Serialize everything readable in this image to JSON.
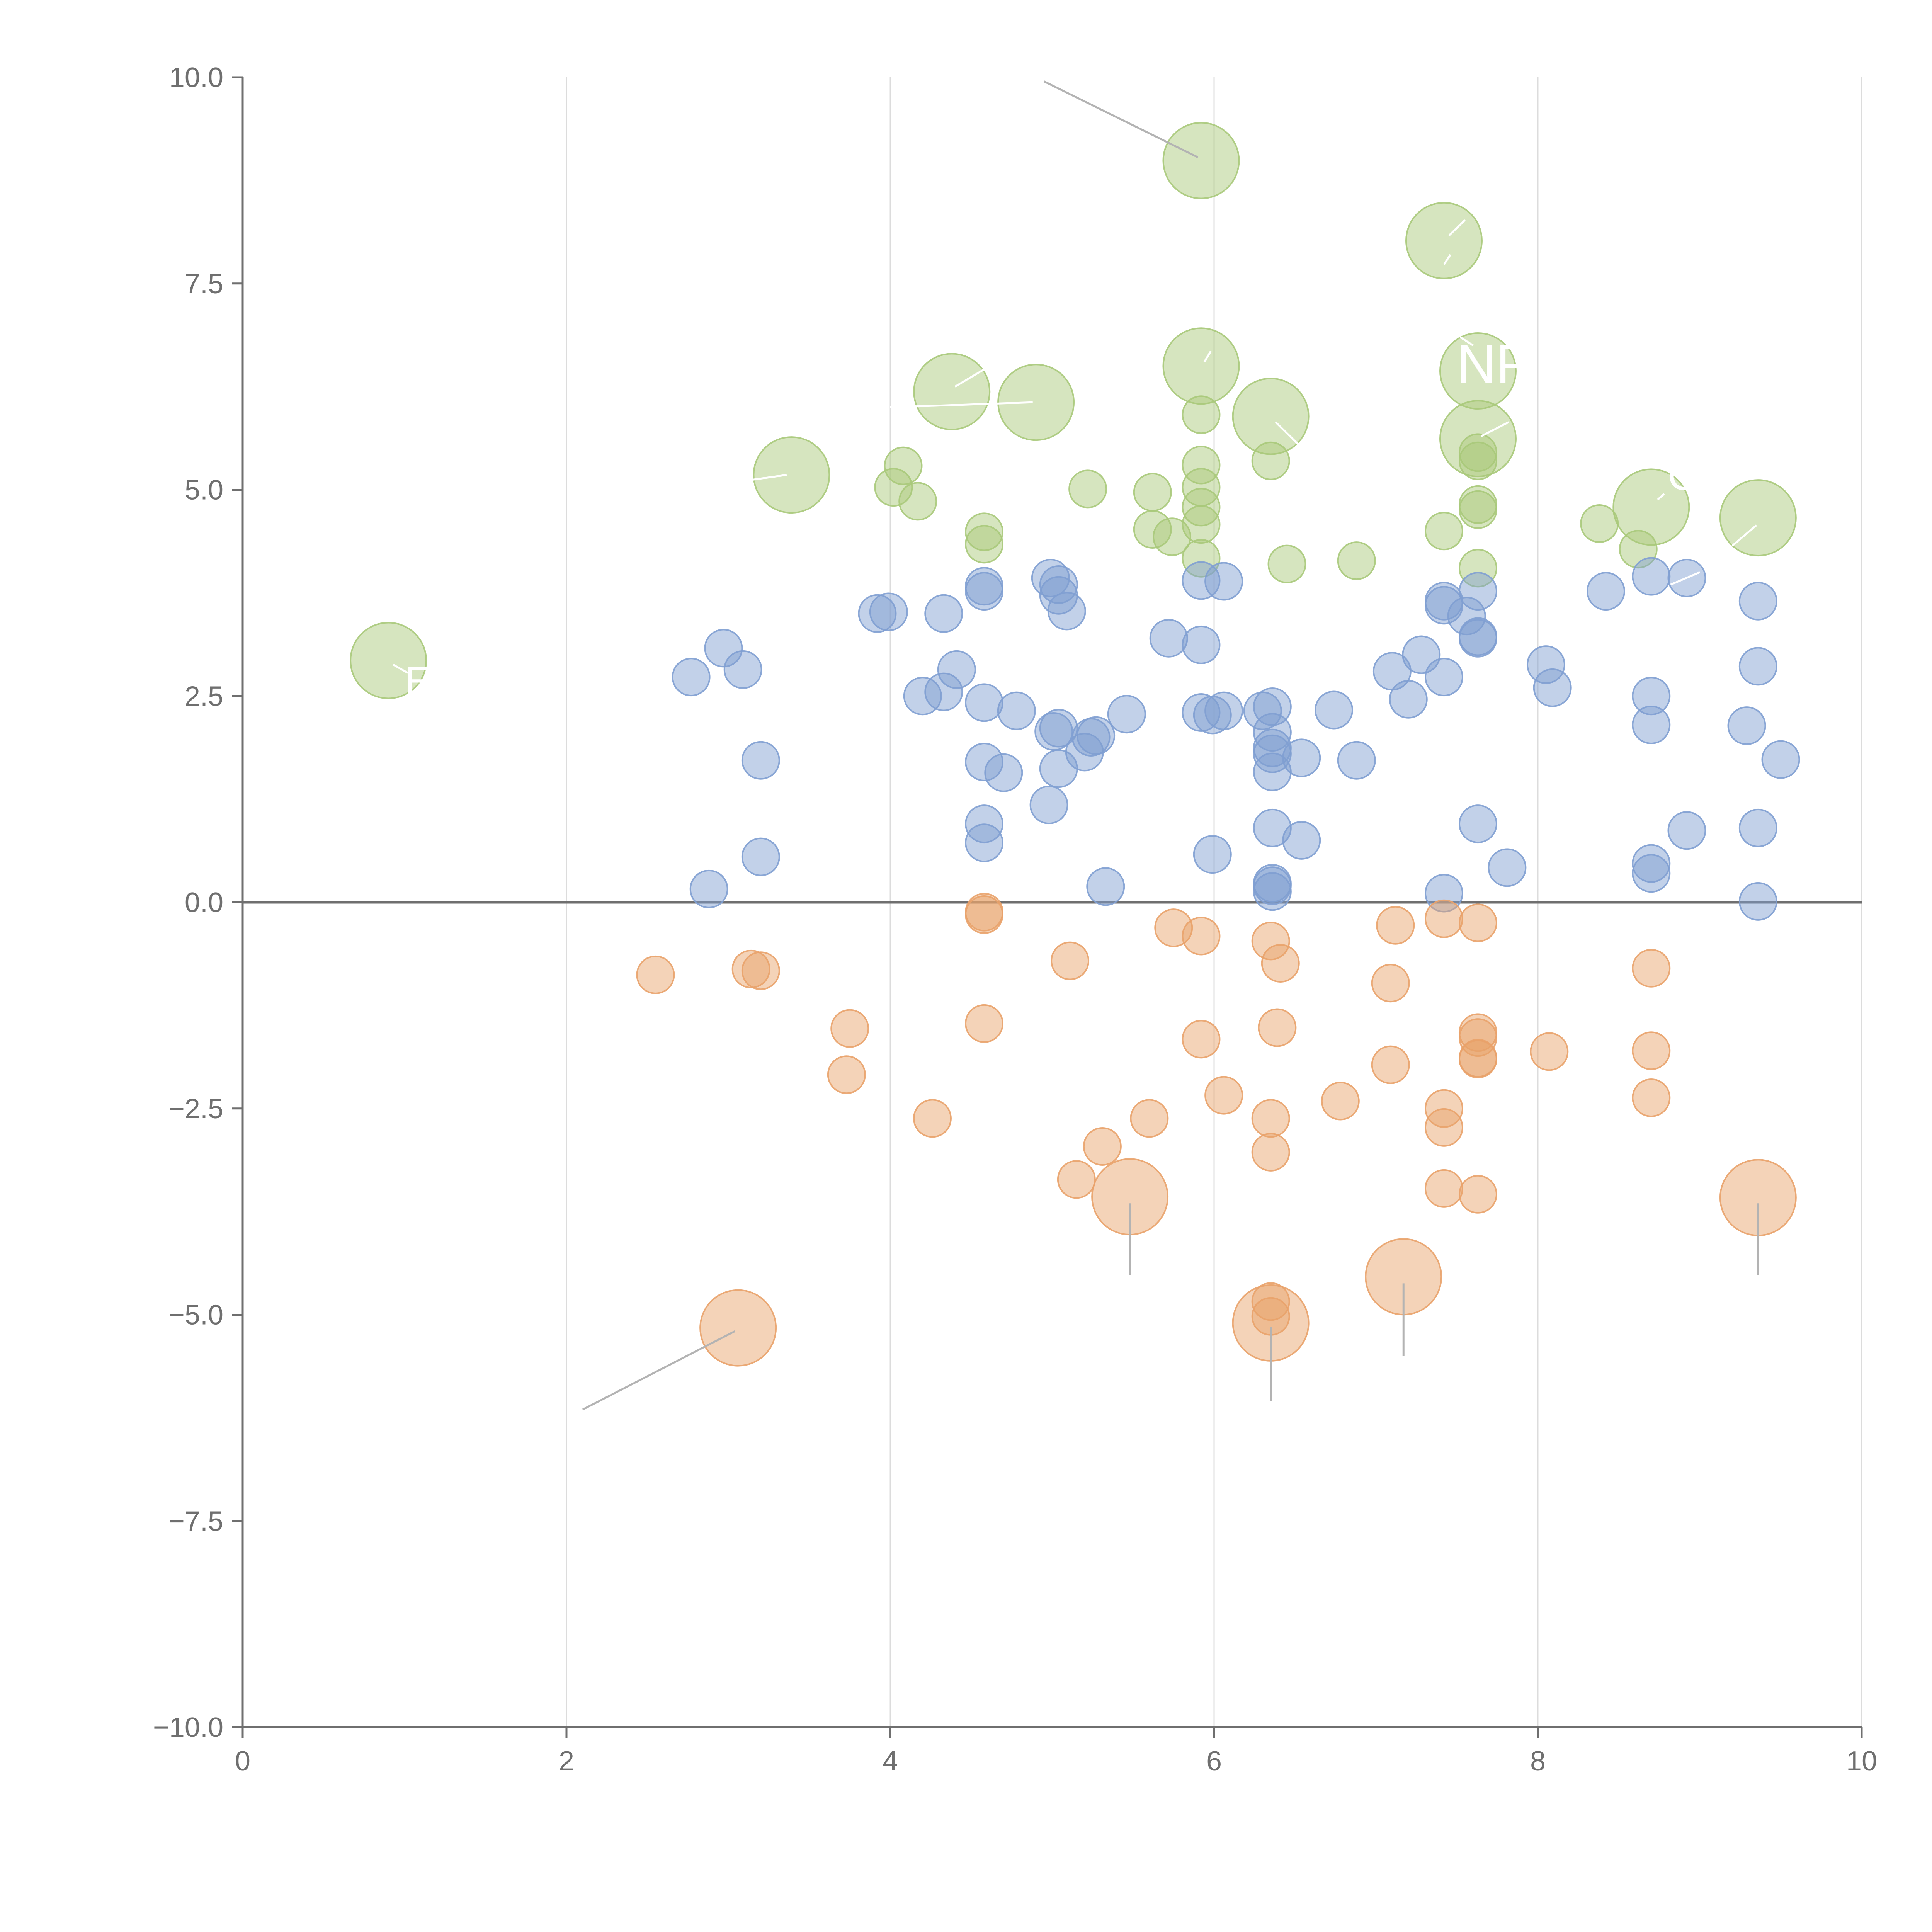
{
  "chart_data": {
    "type": "scatter",
    "title": "",
    "xlabel": "",
    "ylabel": "",
    "xlim": [
      0,
      10
    ],
    "ylim": [
      -10,
      10
    ],
    "grid": {
      "x": true,
      "y": false
    },
    "baseline": 0,
    "x_ticks": [
      0,
      2,
      4,
      6,
      8,
      10
    ],
    "y_ticks": [
      -10,
      -7.5,
      -5,
      -2.5,
      0,
      2.5,
      5,
      7.5,
      10
    ],
    "x_tick_labels": [
      "0",
      "2",
      "4",
      "6",
      "8",
      "10"
    ],
    "y_tick_labels": [
      "10.0",
      "7.5",
      "5.0",
      "2.5",
      "0.0",
      "−2.5",
      "−5.0",
      "−7.5",
      "−10.0"
    ],
    "colors": {
      "green": "#a9c97a",
      "blue": "#7f9fd1",
      "orange": "#e9a26a",
      "axis": "#6f6f6f",
      "grid": "#dcdcdc",
      "leader": "#b3b3b3"
    },
    "series": [
      {
        "name": "green",
        "color": "#a9c97a",
        "points": [
          {
            "x": 0.9,
            "y": 2.93,
            "size": "large"
          },
          {
            "x": 3.39,
            "y": 5.18,
            "size": "large"
          },
          {
            "x": 4.38,
            "y": 6.19,
            "size": "large"
          },
          {
            "x": 4.9,
            "y": 6.06,
            "size": "large"
          },
          {
            "x": 5.92,
            "y": 8.99,
            "size": "large"
          },
          {
            "x": 5.92,
            "y": 6.5,
            "size": "large"
          },
          {
            "x": 6.35,
            "y": 5.89,
            "size": "large"
          },
          {
            "x": 7.42,
            "y": 8.02,
            "size": "large"
          },
          {
            "x": 7.63,
            "y": 6.44,
            "size": "large"
          },
          {
            "x": 7.63,
            "y": 5.62,
            "size": "large"
          },
          {
            "x": 8.7,
            "y": 4.79,
            "size": "large"
          },
          {
            "x": 9.36,
            "y": 4.66,
            "size": "large"
          },
          {
            "x": 4.08,
            "y": 5.29,
            "size": "small"
          },
          {
            "x": 4.02,
            "y": 5.03,
            "size": "small"
          },
          {
            "x": 4.17,
            "y": 4.86,
            "size": "small"
          },
          {
            "x": 4.58,
            "y": 4.49,
            "size": "small"
          },
          {
            "x": 4.58,
            "y": 4.34,
            "size": "small"
          },
          {
            "x": 5.22,
            "y": 5.01,
            "size": "small"
          },
          {
            "x": 5.62,
            "y": 4.97,
            "size": "small"
          },
          {
            "x": 5.62,
            "y": 4.52,
            "size": "small"
          },
          {
            "x": 5.74,
            "y": 4.43,
            "size": "small"
          },
          {
            "x": 5.92,
            "y": 5.91,
            "size": "small"
          },
          {
            "x": 5.92,
            "y": 5.3,
            "size": "small"
          },
          {
            "x": 5.92,
            "y": 5.03,
            "size": "small"
          },
          {
            "x": 5.92,
            "y": 4.79,
            "size": "small"
          },
          {
            "x": 5.92,
            "y": 4.58,
            "size": "small"
          },
          {
            "x": 5.92,
            "y": 4.17,
            "size": "small"
          },
          {
            "x": 6.35,
            "y": 5.35,
            "size": "small"
          },
          {
            "x": 6.45,
            "y": 4.1,
            "size": "small"
          },
          {
            "x": 6.88,
            "y": 4.14,
            "size": "small"
          },
          {
            "x": 7.42,
            "y": 4.5,
            "size": "small"
          },
          {
            "x": 7.63,
            "y": 5.45,
            "size": "small"
          },
          {
            "x": 7.63,
            "y": 5.35,
            "size": "small"
          },
          {
            "x": 7.63,
            "y": 4.82,
            "size": "small"
          },
          {
            "x": 7.63,
            "y": 4.76,
            "size": "small"
          },
          {
            "x": 7.63,
            "y": 4.05,
            "size": "small"
          },
          {
            "x": 8.38,
            "y": 4.59,
            "size": "small"
          },
          {
            "x": 8.62,
            "y": 4.28,
            "size": "small"
          }
        ]
      },
      {
        "name": "blue",
        "color": "#7f9fd1",
        "points": [
          {
            "x": 2.77,
            "y": 2.73
          },
          {
            "x": 2.97,
            "y": 3.08
          },
          {
            "x": 3.09,
            "y": 2.82
          },
          {
            "x": 3.2,
            "y": 1.72
          },
          {
            "x": 3.2,
            "y": 0.55
          },
          {
            "x": 2.88,
            "y": 0.16
          },
          {
            "x": 3.92,
            "y": 3.5
          },
          {
            "x": 3.99,
            "y": 3.52
          },
          {
            "x": 4.33,
            "y": 3.5
          },
          {
            "x": 4.2,
            "y": 2.5
          },
          {
            "x": 4.33,
            "y": 2.55
          },
          {
            "x": 4.41,
            "y": 2.82
          },
          {
            "x": 4.58,
            "y": 3.83
          },
          {
            "x": 4.58,
            "y": 3.77
          },
          {
            "x": 4.58,
            "y": 2.42
          },
          {
            "x": 4.58,
            "y": 1.7
          },
          {
            "x": 4.58,
            "y": 0.95
          },
          {
            "x": 4.58,
            "y": 0.72
          },
          {
            "x": 4.7,
            "y": 1.57
          },
          {
            "x": 4.78,
            "y": 2.32
          },
          {
            "x": 4.99,
            "y": 3.93
          },
          {
            "x": 5.04,
            "y": 3.85
          },
          {
            "x": 5.04,
            "y": 3.72
          },
          {
            "x": 5.09,
            "y": 3.53
          },
          {
            "x": 5.04,
            "y": 2.11
          },
          {
            "x": 5.01,
            "y": 2.07
          },
          {
            "x": 5.04,
            "y": 1.62
          },
          {
            "x": 4.98,
            "y": 1.18
          },
          {
            "x": 5.2,
            "y": 1.82
          },
          {
            "x": 5.24,
            "y": 2.0
          },
          {
            "x": 5.27,
            "y": 2.02
          },
          {
            "x": 5.46,
            "y": 2.28
          },
          {
            "x": 5.33,
            "y": 0.19
          },
          {
            "x": 5.72,
            "y": 3.2
          },
          {
            "x": 5.92,
            "y": 3.9
          },
          {
            "x": 5.92,
            "y": 3.12
          },
          {
            "x": 5.92,
            "y": 2.3
          },
          {
            "x": 5.99,
            "y": 2.27
          },
          {
            "x": 6.06,
            "y": 3.89
          },
          {
            "x": 6.06,
            "y": 2.32
          },
          {
            "x": 5.99,
            "y": 0.58
          },
          {
            "x": 6.3,
            "y": 2.32
          },
          {
            "x": 6.36,
            "y": 2.37
          },
          {
            "x": 6.36,
            "y": 2.06
          },
          {
            "x": 6.36,
            "y": 1.87
          },
          {
            "x": 6.36,
            "y": 1.8
          },
          {
            "x": 6.36,
            "y": 1.58
          },
          {
            "x": 6.36,
            "y": 0.9
          },
          {
            "x": 6.36,
            "y": 0.23
          },
          {
            "x": 6.36,
            "y": 0.2
          },
          {
            "x": 6.36,
            "y": 0.13
          },
          {
            "x": 6.54,
            "y": 1.75
          },
          {
            "x": 6.54,
            "y": 0.75
          },
          {
            "x": 6.74,
            "y": 2.33
          },
          {
            "x": 6.88,
            "y": 1.72
          },
          {
            "x": 7.1,
            "y": 2.8
          },
          {
            "x": 7.2,
            "y": 2.46
          },
          {
            "x": 7.28,
            "y": 3.0
          },
          {
            "x": 7.42,
            "y": 3.65
          },
          {
            "x": 7.42,
            "y": 3.6
          },
          {
            "x": 7.42,
            "y": 2.73
          },
          {
            "x": 7.42,
            "y": 0.11
          },
          {
            "x": 7.56,
            "y": 3.47
          },
          {
            "x": 7.63,
            "y": 3.77
          },
          {
            "x": 7.63,
            "y": 3.22
          },
          {
            "x": 7.63,
            "y": 3.2
          },
          {
            "x": 7.63,
            "y": 0.95
          },
          {
            "x": 7.81,
            "y": 0.42
          },
          {
            "x": 8.05,
            "y": 2.88
          },
          {
            "x": 8.09,
            "y": 2.6
          },
          {
            "x": 8.42,
            "y": 3.77
          },
          {
            "x": 8.7,
            "y": 3.95
          },
          {
            "x": 8.7,
            "y": 2.5
          },
          {
            "x": 8.7,
            "y": 2.15
          },
          {
            "x": 8.7,
            "y": 0.47
          },
          {
            "x": 8.7,
            "y": 0.35
          },
          {
            "x": 8.92,
            "y": 3.93
          },
          {
            "x": 8.92,
            "y": 0.87
          },
          {
            "x": 9.29,
            "y": 2.14
          },
          {
            "x": 9.36,
            "y": 3.65
          },
          {
            "x": 9.36,
            "y": 2.86
          },
          {
            "x": 9.36,
            "y": 0.9
          },
          {
            "x": 9.36,
            "y": 0.01
          },
          {
            "x": 9.5,
            "y": 1.73
          }
        ]
      },
      {
        "name": "orange",
        "color": "#e9a26a",
        "points": [
          {
            "x": 3.06,
            "y": -5.16,
            "size": "large"
          },
          {
            "x": 5.48,
            "y": -3.57,
            "size": "large"
          },
          {
            "x": 6.35,
            "y": -5.1,
            "size": "large"
          },
          {
            "x": 7.17,
            "y": -4.54,
            "size": "large"
          },
          {
            "x": 9.36,
            "y": -3.58,
            "size": "large"
          },
          {
            "x": 2.55,
            "y": -0.88,
            "size": "small"
          },
          {
            "x": 3.14,
            "y": -0.81,
            "size": "small"
          },
          {
            "x": 3.2,
            "y": -0.83,
            "size": "small"
          },
          {
            "x": 3.75,
            "y": -1.53,
            "size": "small"
          },
          {
            "x": 3.73,
            "y": -2.09,
            "size": "small"
          },
          {
            "x": 4.26,
            "y": -2.62,
            "size": "small"
          },
          {
            "x": 4.58,
            "y": -0.12,
            "size": "small"
          },
          {
            "x": 4.58,
            "y": -0.15,
            "size": "small"
          },
          {
            "x": 4.58,
            "y": -1.47,
            "size": "small"
          },
          {
            "x": 5.11,
            "y": -0.71,
            "size": "small"
          },
          {
            "x": 5.31,
            "y": -2.96,
            "size": "small"
          },
          {
            "x": 5.15,
            "y": -3.36,
            "size": "small"
          },
          {
            "x": 5.6,
            "y": -2.62,
            "size": "small"
          },
          {
            "x": 5.75,
            "y": -0.31,
            "size": "small"
          },
          {
            "x": 5.92,
            "y": -0.41,
            "size": "small"
          },
          {
            "x": 5.92,
            "y": -1.66,
            "size": "small"
          },
          {
            "x": 6.06,
            "y": -2.34,
            "size": "small"
          },
          {
            "x": 6.35,
            "y": -0.47,
            "size": "small"
          },
          {
            "x": 6.41,
            "y": -0.74,
            "size": "small"
          },
          {
            "x": 6.39,
            "y": -1.52,
            "size": "small"
          },
          {
            "x": 6.35,
            "y": -2.62,
            "size": "small"
          },
          {
            "x": 6.35,
            "y": -3.03,
            "size": "small"
          },
          {
            "x": 6.35,
            "y": -4.84,
            "size": "small"
          },
          {
            "x": 6.35,
            "y": -5.02,
            "size": "small"
          },
          {
            "x": 6.78,
            "y": -2.41,
            "size": "small"
          },
          {
            "x": 7.09,
            "y": -0.98,
            "size": "small"
          },
          {
            "x": 7.12,
            "y": -0.28,
            "size": "small"
          },
          {
            "x": 7.09,
            "y": -1.97,
            "size": "small"
          },
          {
            "x": 7.42,
            "y": -0.2,
            "size": "small"
          },
          {
            "x": 7.42,
            "y": -2.5,
            "size": "small"
          },
          {
            "x": 7.42,
            "y": -2.73,
            "size": "small"
          },
          {
            "x": 7.42,
            "y": -3.47,
            "size": "small"
          },
          {
            "x": 7.63,
            "y": -0.25,
            "size": "small"
          },
          {
            "x": 7.63,
            "y": -1.58,
            "size": "small"
          },
          {
            "x": 7.63,
            "y": -1.64,
            "size": "small"
          },
          {
            "x": 7.63,
            "y": -1.89,
            "size": "small"
          },
          {
            "x": 7.63,
            "y": -1.9,
            "size": "small"
          },
          {
            "x": 7.63,
            "y": -3.54,
            "size": "small"
          },
          {
            "x": 8.07,
            "y": -1.81,
            "size": "small"
          },
          {
            "x": 8.7,
            "y": -0.8,
            "size": "small"
          },
          {
            "x": 8.7,
            "y": -1.8,
            "size": "small"
          },
          {
            "x": 8.7,
            "y": -2.37,
            "size": "small"
          }
        ]
      }
    ],
    "leader_lines": [
      {
        "x1": 4.95,
        "y1": 9.95,
        "x2": 5.9,
        "y2": 9.03,
        "color": "#b3b3b3"
      },
      {
        "x1": 2.1,
        "y1": -6.15,
        "x2": 3.04,
        "y2": -5.2,
        "color": "#b3b3b3"
      },
      {
        "x1": 5.48,
        "y1": -3.65,
        "x2": 5.48,
        "y2": -4.52,
        "color": "#b3b3b3"
      },
      {
        "x1": 6.35,
        "y1": -5.15,
        "x2": 6.35,
        "y2": -6.05,
        "color": "#b3b3b3"
      },
      {
        "x1": 7.17,
        "y1": -4.62,
        "x2": 7.17,
        "y2": -5.5,
        "color": "#b3b3b3"
      },
      {
        "x1": 9.36,
        "y1": -3.65,
        "x2": 9.36,
        "y2": -4.52,
        "color": "#b3b3b3"
      },
      {
        "x1": 0.93,
        "y1": 2.88,
        "x2": 1.02,
        "y2": 2.78,
        "color": "#ffffff"
      },
      {
        "x1": 3.07,
        "y1": 5.1,
        "x2": 3.36,
        "y2": 5.18,
        "color": "#ffffff"
      },
      {
        "x1": 4.0,
        "y1": 6.0,
        "x2": 4.88,
        "y2": 6.06,
        "color": "#ffffff"
      },
      {
        "x1": 4.4,
        "y1": 6.25,
        "x2": 4.58,
        "y2": 6.46,
        "color": "#ffffff"
      },
      {
        "x1": 5.94,
        "y1": 6.55,
        "x2": 5.98,
        "y2": 6.68,
        "color": "#ffffff"
      },
      {
        "x1": 6.38,
        "y1": 5.82,
        "x2": 6.52,
        "y2": 5.55,
        "color": "#ffffff"
      },
      {
        "x1": 7.45,
        "y1": 8.08,
        "x2": 7.55,
        "y2": 8.27,
        "color": "#ffffff"
      },
      {
        "x1": 7.42,
        "y1": 7.73,
        "x2": 7.46,
        "y2": 7.85,
        "color": "#ffffff"
      },
      {
        "x1": 7.65,
        "y1": 5.65,
        "x2": 7.82,
        "y2": 5.82,
        "color": "#ffffff"
      },
      {
        "x1": 7.6,
        "y1": 6.75,
        "x2": 7.52,
        "y2": 6.85,
        "color": "#ffffff"
      },
      {
        "x1": 8.74,
        "y1": 4.88,
        "x2": 8.78,
        "y2": 4.95,
        "color": "#ffffff"
      },
      {
        "x1": 9.35,
        "y1": 4.57,
        "x2": 9.2,
        "y2": 4.32,
        "color": "#ffffff"
      },
      {
        "x1": 9.0,
        "y1": 4.0,
        "x2": 8.82,
        "y2": 3.85,
        "color": "#ffffff"
      },
      {
        "x1": 3.5,
        "y1": 4.38,
        "x2": 3.55,
        "y2": 4.48,
        "color": "#ffffff"
      }
    ],
    "annotations": [
      {
        "text": "E",
        "x": 1.0,
        "y": 2.5,
        "size": "medium"
      },
      {
        "text": "NP",
        "x": 7.5,
        "y": 6.3,
        "size": "large"
      },
      {
        "text": "C",
        "x": 8.8,
        "y": 5.0,
        "size": "medium"
      }
    ]
  }
}
